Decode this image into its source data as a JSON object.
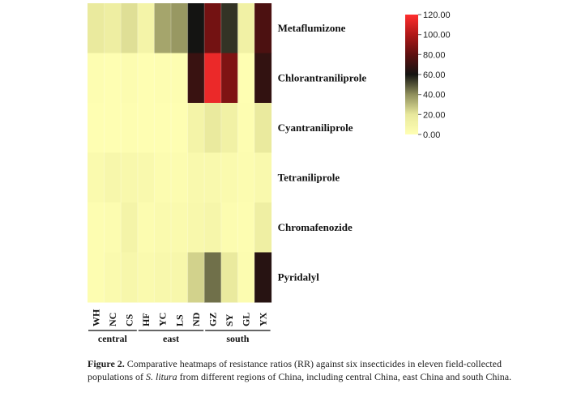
{
  "chart_data": {
    "type": "heatmap",
    "rows": [
      "Metaflumizone",
      "Chlorantraniliprole",
      "Cyantraniliprole",
      "Tetraniliprole",
      "Chromafenozide",
      "Pyridalyl"
    ],
    "columns": [
      "WH",
      "NC",
      "CS",
      "HF",
      "YC",
      "LS",
      "ND",
      "GZ",
      "SY",
      "GL",
      "YX"
    ],
    "groups": [
      {
        "label": "central",
        "columns": [
          "WH",
          "NC",
          "CS"
        ]
      },
      {
        "label": "east",
        "columns": [
          "HF",
          "YC",
          "LS",
          "ND"
        ]
      },
      {
        "label": "south",
        "columns": [
          "GZ",
          "SY",
          "GL",
          "YX"
        ]
      }
    ],
    "values": [
      [
        18,
        15,
        22,
        10,
        35,
        38,
        60,
        85,
        55,
        12,
        75
      ],
      [
        2,
        1,
        3,
        1,
        2,
        2,
        70,
        115,
        88,
        1,
        68
      ],
      [
        1,
        1,
        2,
        1,
        1,
        1,
        10,
        18,
        12,
        2,
        18
      ],
      [
        4,
        7,
        6,
        5,
        3,
        3,
        5,
        5,
        4,
        3,
        5
      ],
      [
        2,
        3,
        10,
        3,
        4,
        4,
        6,
        8,
        3,
        2,
        14
      ],
      [
        2,
        4,
        7,
        4,
        6,
        7,
        25,
        45,
        18,
        3,
        65
      ]
    ],
    "colorbar": {
      "min": 0,
      "max": 120,
      "ticks": [
        "120.00",
        "100.00",
        "80.00",
        "60.00",
        "40.00",
        "20.00",
        "0.00"
      ],
      "stops": [
        {
          "value": 0,
          "color": "#ffffb3"
        },
        {
          "value": 20,
          "color": "#e8e89c"
        },
        {
          "value": 40,
          "color": "#8f8f5c"
        },
        {
          "value": 60,
          "color": "#141412"
        },
        {
          "value": 80,
          "color": "#5e1010"
        },
        {
          "value": 100,
          "color": "#b01818"
        },
        {
          "value": 120,
          "color": "#ff2e2e"
        }
      ]
    }
  },
  "caption": {
    "label": "Figure 2.",
    "text_1": " Comparative heatmaps of resistance ratios (RR) against six insecticides in eleven field-collected populations of ",
    "species": "S. litura",
    "text_2": " from different regions of China, including central China, east China and south China."
  }
}
